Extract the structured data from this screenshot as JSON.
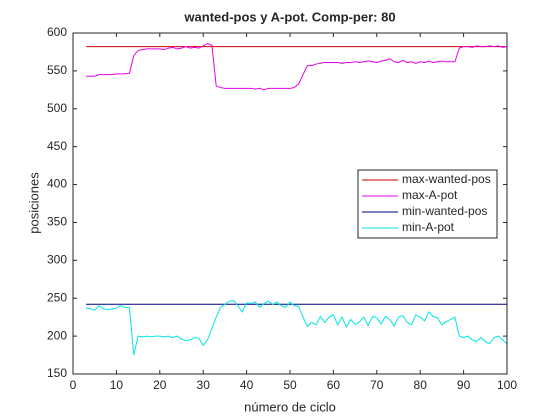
{
  "chart_data": {
    "type": "line",
    "title": "wanted-pos y A-pot. Comp-per: 80",
    "x_label": "número de ciclo",
    "y_label": "posiciones",
    "xlim": [
      0,
      100
    ],
    "xticks": [
      0,
      10,
      20,
      30,
      40,
      50,
      60,
      70,
      80,
      90,
      100
    ],
    "ylim": [
      150,
      600
    ],
    "yticks": [
      150,
      200,
      250,
      300,
      350,
      400,
      450,
      500,
      550,
      600
    ],
    "grid": false,
    "legend": "east",
    "series": [
      {
        "name": "max-wanted-pos",
        "color": "#cc0000",
        "x": [
          3,
          100
        ],
        "values": [
          582,
          582
        ]
      },
      {
        "name": "max-A-pot",
        "color": "#e600e6",
        "x": [
          3,
          4,
          5,
          6,
          7,
          8,
          9,
          10,
          11,
          12,
          13,
          14,
          15,
          16,
          17,
          18,
          19,
          20,
          21,
          22,
          23,
          24,
          25,
          26,
          27,
          28,
          29,
          30,
          31,
          32,
          33,
          34,
          35,
          36,
          37,
          38,
          39,
          40,
          41,
          42,
          43,
          44,
          45,
          46,
          47,
          48,
          49,
          50,
          51,
          52,
          53,
          54,
          55,
          56,
          57,
          58,
          59,
          60,
          61,
          62,
          63,
          64,
          65,
          66,
          67,
          68,
          69,
          70,
          71,
          72,
          73,
          74,
          75,
          76,
          77,
          78,
          79,
          80,
          81,
          82,
          83,
          84,
          85,
          86,
          87,
          88,
          89,
          90,
          91,
          92,
          93,
          94,
          95,
          96,
          97,
          98,
          99,
          100
        ],
        "values": [
          543,
          543,
          543,
          545,
          545,
          545,
          545,
          546,
          546,
          546,
          547,
          570,
          577,
          578,
          579,
          579,
          579,
          579,
          578,
          580,
          581,
          579,
          580,
          582,
          580,
          581,
          580,
          583,
          586,
          584,
          530,
          528,
          527,
          527,
          527,
          527,
          527,
          527,
          527,
          526,
          527,
          525,
          527,
          527,
          527,
          527,
          527,
          527,
          528,
          533,
          545,
          557,
          557,
          559,
          560,
          561,
          561,
          561,
          561,
          560,
          561,
          561,
          562,
          561,
          562,
          563,
          562,
          561,
          563,
          564,
          566,
          562,
          561,
          564,
          561,
          562,
          560,
          562,
          561,
          563,
          561,
          562,
          563,
          562,
          562,
          562,
          580,
          582,
          582,
          581,
          583,
          582,
          582,
          583,
          582,
          583,
          581,
          582
        ]
      },
      {
        "name": "min-wanted-pos",
        "color": "#00008b",
        "x": [
          3,
          100
        ],
        "values": [
          242,
          242
        ]
      },
      {
        "name": "min-A-pot",
        "color": "#00e6e6",
        "x": [
          3,
          4,
          5,
          6,
          7,
          8,
          9,
          10,
          11,
          12,
          13,
          14,
          15,
          16,
          17,
          18,
          19,
          20,
          21,
          22,
          23,
          24,
          25,
          26,
          27,
          28,
          29,
          30,
          31,
          32,
          33,
          34,
          35,
          36,
          37,
          38,
          39,
          40,
          41,
          42,
          43,
          44,
          45,
          46,
          47,
          48,
          49,
          50,
          51,
          52,
          53,
          54,
          55,
          56,
          57,
          58,
          59,
          60,
          61,
          62,
          63,
          64,
          65,
          66,
          67,
          68,
          69,
          70,
          71,
          72,
          73,
          74,
          75,
          76,
          77,
          78,
          79,
          80,
          81,
          82,
          83,
          84,
          85,
          86,
          87,
          88,
          89,
          90,
          91,
          92,
          93,
          94,
          95,
          96,
          97,
          98,
          99,
          100
        ],
        "values": [
          237,
          236,
          234,
          240,
          236,
          235,
          236,
          237,
          240,
          238,
          238,
          175,
          200,
          199,
          200,
          199,
          200,
          200,
          199,
          200,
          198,
          200,
          196,
          194,
          195,
          198,
          197,
          188,
          195,
          210,
          225,
          238,
          242,
          246,
          247,
          240,
          232,
          244,
          243,
          245,
          238,
          243,
          246,
          242,
          245,
          240,
          238,
          245,
          240,
          239,
          225,
          213,
          218,
          215,
          226,
          218,
          225,
          228,
          215,
          225,
          212,
          222,
          215,
          219,
          225,
          214,
          226,
          224,
          216,
          226,
          222,
          213,
          225,
          227,
          218,
          215,
          228,
          225,
          220,
          232,
          226,
          224,
          215,
          219,
          222,
          225,
          200,
          198,
          200,
          195,
          193,
          198,
          193,
          190,
          198,
          200,
          195,
          190
        ]
      }
    ]
  }
}
